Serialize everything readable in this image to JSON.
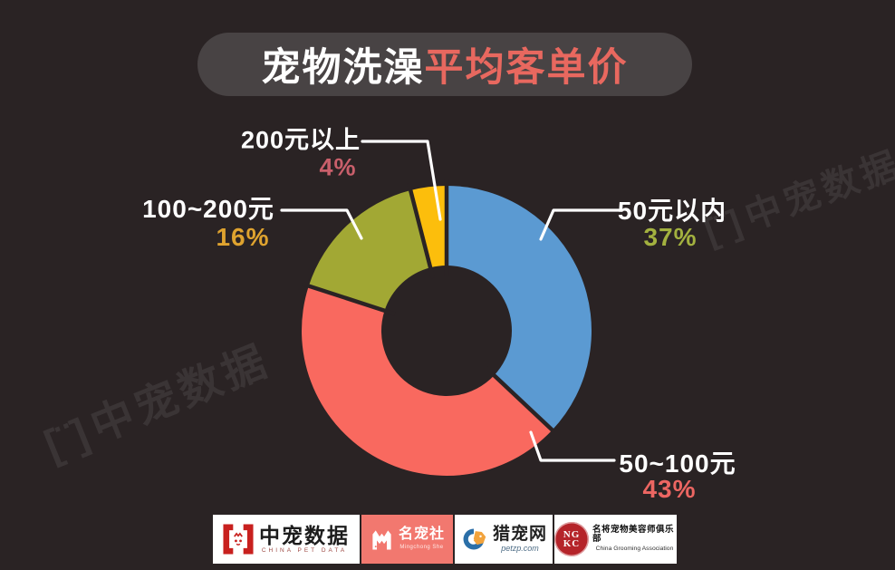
{
  "title": {
    "part1": "宠物洗澡",
    "part2": "平均客单价"
  },
  "watermark": {
    "icon": "[¨]",
    "text": "中宠数据"
  },
  "chart_data": {
    "type": "pie",
    "subtype": "donut",
    "title": "宠物洗澡平均客单价",
    "start_angle_deg": 0,
    "direction": "clockwise",
    "inner_radius_ratio": 0.45,
    "legend": "none, callout labels with leader lines",
    "slices": [
      {
        "id": "under-50",
        "label": "50元以内",
        "value": 37,
        "display": "37%",
        "color": "#5B9AD2",
        "value_color": "#A3B13F"
      },
      {
        "id": "50-100",
        "label": "50~100元",
        "value": 43,
        "display": "43%",
        "color": "#F9695F",
        "value_color": "#EC6662"
      },
      {
        "id": "100-200",
        "label": "100~200元",
        "value": 16,
        "display": "16%",
        "color": "#A2A834",
        "value_color": "#DFA32F"
      },
      {
        "id": "over-200",
        "label": "200元以上",
        "value": 4,
        "display": "4%",
        "color": "#FCBE0C",
        "value_color": "#C95F6B"
      }
    ]
  },
  "footer": {
    "logos": [
      {
        "id": "china-pet-data",
        "name": "中宠数据",
        "subtitle": "CHINA PET DATA"
      },
      {
        "id": "mingchongshe",
        "name": "名宠社",
        "subtitle": "Mingchong She"
      },
      {
        "id": "liechongwang",
        "name": "猎宠网",
        "subtitle": "petzp.com"
      },
      {
        "id": "ngkc",
        "name": "名将宠物美容师俱乐部",
        "subtitle": "China Grooming Association",
        "badge_top": "NG",
        "badge_bottom": "KC"
      }
    ]
  },
  "colors": {
    "background": "#2A2324",
    "title_pill": "#484344",
    "title_accent": "#E8685F",
    "leader_line": "#FFFFFF"
  }
}
